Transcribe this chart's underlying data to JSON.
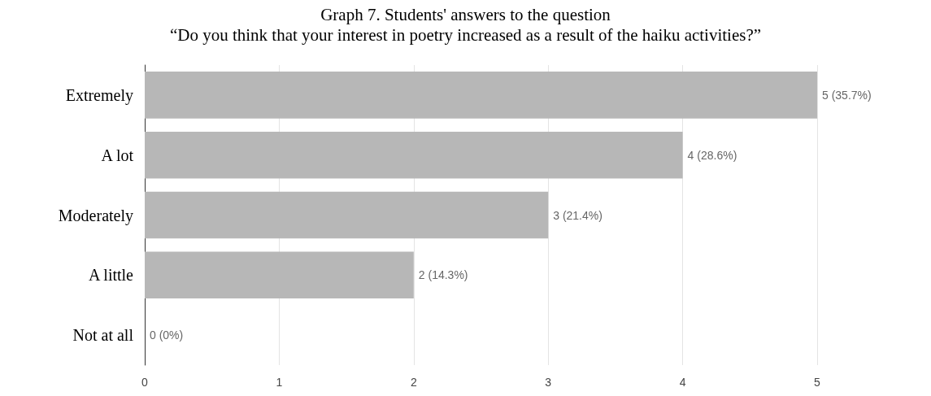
{
  "chart_data": {
    "type": "bar",
    "orientation": "horizontal",
    "title": "Graph 7. Students' answers to the question",
    "subtitle": "“Do you think that your interest in poetry increased as a result of the haiku activities?”",
    "categories": [
      "Extremely",
      "A lot",
      "Moderately",
      "A little",
      "Not at all"
    ],
    "values": [
      5,
      4,
      3,
      2,
      0
    ],
    "value_labels": [
      "5 (35.7%)",
      "4 (28.6%)",
      "3 (21.4%)",
      "2 (14.3%)",
      "0 (0%)"
    ],
    "color": "#b7b7b7",
    "xlim": [
      0,
      5
    ],
    "xticks": [
      0,
      1,
      2,
      3,
      4,
      5
    ],
    "grid": "x"
  }
}
